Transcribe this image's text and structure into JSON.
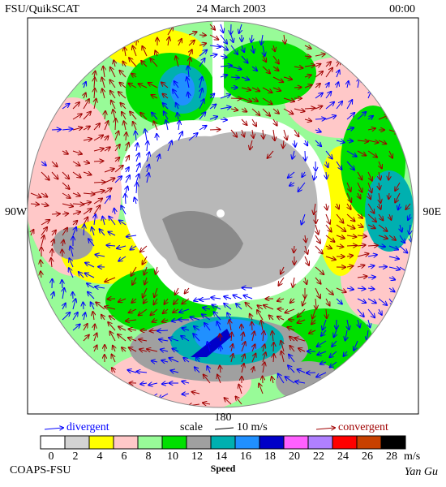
{
  "header": {
    "left": "FSU/QuikSCAT",
    "center": "24 March 2003",
    "right": "00:00"
  },
  "map": {
    "labels": {
      "west": "90W",
      "east": "90E",
      "bottom": "180"
    }
  },
  "legend": {
    "divergent": "divergent",
    "scale": "scale",
    "scale_value": "10 m/s",
    "convergent": "convergent"
  },
  "colorbar": {
    "ticks": [
      0,
      2,
      4,
      6,
      8,
      10,
      12,
      14,
      16,
      18,
      20,
      22,
      24,
      26,
      28
    ],
    "unit": "m/s",
    "title": "Speed",
    "colors": [
      "#ffffff",
      "#d3d3d3",
      "#ffff00",
      "#ffc8c8",
      "#98fb98",
      "#00e000",
      "#a0a0a0",
      "#00b0b0",
      "#2090ff",
      "#0000c8",
      "#ff60ff",
      "#b080ff",
      "#ff0000",
      "#c84000",
      "#000000"
    ]
  },
  "footer": {
    "left": "COAPS-FSU",
    "right": "Yan Gu"
  }
}
